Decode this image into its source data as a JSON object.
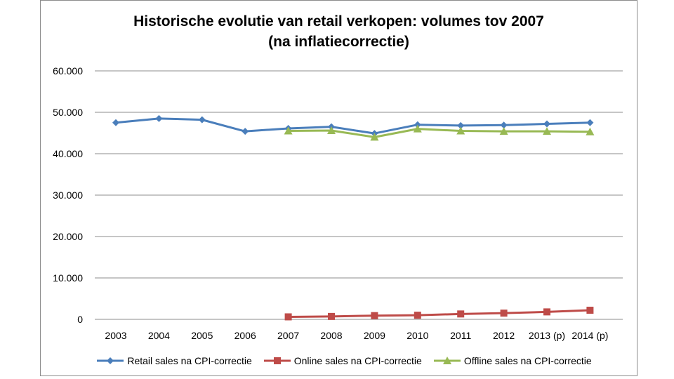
{
  "chart_data": {
    "type": "line",
    "title_line1": "Historische evolutie van retail verkopen: volumes tov 2007",
    "title_line2": "(na inflatiecorrectie)",
    "categories": [
      "2003",
      "2004",
      "2005",
      "2006",
      "2007",
      "2008",
      "2009",
      "2010",
      "2011",
      "2012",
      "2013 (p)",
      "2014 (p)"
    ],
    "ylim": [
      0,
      60000
    ],
    "yticks": [
      {
        "value": 0,
        "label": "0"
      },
      {
        "value": 10000,
        "label": "10.000"
      },
      {
        "value": 20000,
        "label": "20.000"
      },
      {
        "value": 30000,
        "label": "30.000"
      },
      {
        "value": 40000,
        "label": "40.000"
      },
      {
        "value": 50000,
        "label": "50.000"
      },
      {
        "value": 60000,
        "label": "60.000"
      }
    ],
    "grid": true,
    "legend_position": "bottom",
    "series": [
      {
        "name": "Retail sales na CPI-correctie",
        "color": "#4a7ebb",
        "marker": "diamond",
        "values": [
          47500,
          48500,
          48200,
          45400,
          46100,
          46500,
          44900,
          47000,
          46800,
          46900,
          47200,
          47500
        ]
      },
      {
        "name": "Online sales na CPI-correctie",
        "color": "#be4b48",
        "marker": "square",
        "values": [
          null,
          null,
          null,
          null,
          600,
          700,
          900,
          1000,
          1300,
          1500,
          1800,
          2200
        ]
      },
      {
        "name": "Offline sales na CPI-correctie",
        "color": "#98b954",
        "marker": "triangle",
        "values": [
          null,
          null,
          null,
          null,
          45500,
          45600,
          44000,
          46000,
          45500,
          45400,
          45400,
          45300
        ]
      }
    ]
  }
}
